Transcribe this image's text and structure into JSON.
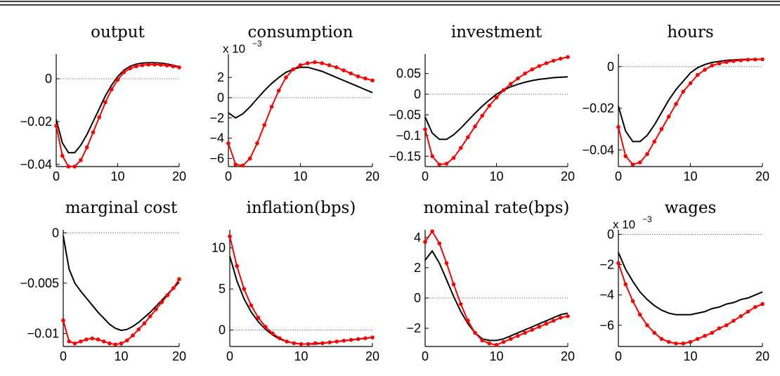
{
  "colors": {
    "model_a": "#000000",
    "model_b": "#ff0000",
    "zero_line": "#555555"
  },
  "chart_data": [
    {
      "type": "line",
      "title": "output",
      "xticks": [
        "0",
        "10",
        "20"
      ],
      "yticks": [
        "0",
        "−0.02",
        "−0.04"
      ],
      "xlim": [
        0,
        20
      ],
      "ylim": [
        -0.041,
        0.0115
      ],
      "yticks_values": [
        0,
        -0.02,
        -0.04
      ],
      "multiplier": "",
      "series": [
        {
          "style": "solid-black",
          "x": [
            0,
            1,
            2,
            3,
            4,
            5,
            6,
            7,
            8,
            9,
            10,
            11,
            12,
            13,
            14,
            15,
            16,
            17,
            18,
            19,
            20
          ],
          "y": [
            -0.019,
            -0.03,
            -0.0345,
            -0.0345,
            -0.031,
            -0.026,
            -0.02,
            -0.014,
            -0.008,
            -0.003,
            0.001,
            0.004,
            0.0058,
            0.0068,
            0.0073,
            0.0075,
            0.0075,
            0.0073,
            0.0069,
            0.0063,
            0.0056
          ]
        },
        {
          "style": "red-dots",
          "x": [
            0,
            1,
            2,
            3,
            4,
            5,
            6,
            7,
            8,
            9,
            10,
            11,
            12,
            13,
            14,
            15,
            16,
            17,
            18,
            19,
            20
          ],
          "y": [
            -0.022,
            -0.036,
            -0.041,
            -0.041,
            -0.038,
            -0.032,
            -0.025,
            -0.018,
            -0.011,
            -0.005,
            -0.0005,
            0.003,
            0.0048,
            0.0058,
            0.0063,
            0.0066,
            0.0066,
            0.0065,
            0.0062,
            0.0058,
            0.0053
          ]
        }
      ]
    },
    {
      "type": "line",
      "title": "consumption",
      "xticks": [
        "0",
        "10",
        "20"
      ],
      "yticks": [
        "2",
        "0",
        "−2",
        "−4",
        "−6"
      ],
      "xlim": [
        0,
        20
      ],
      "ylim": [
        -6.8,
        4.3
      ],
      "yticks_values": [
        2,
        0,
        -2,
        -4,
        -6
      ],
      "multiplier": "x 10",
      "multiplier_exponent": "−3",
      "series": [
        {
          "style": "solid-black",
          "x": [
            0,
            1,
            2,
            3,
            4,
            5,
            6,
            7,
            8,
            9,
            10,
            11,
            12,
            13,
            14,
            15,
            16,
            17,
            18,
            19,
            20
          ],
          "y": [
            -1.5,
            -2.0,
            -1.6,
            -0.9,
            -0.1,
            0.7,
            1.4,
            2.0,
            2.5,
            2.8,
            3.0,
            3.0,
            2.8,
            2.6,
            2.3,
            2.0,
            1.7,
            1.4,
            1.1,
            0.8,
            0.5
          ]
        },
        {
          "style": "red-dots",
          "x": [
            0,
            1,
            2,
            3,
            4,
            5,
            6,
            7,
            8,
            9,
            10,
            11,
            12,
            13,
            14,
            15,
            16,
            17,
            18,
            19,
            20
          ],
          "y": [
            -4.5,
            -6.6,
            -6.7,
            -6.0,
            -4.5,
            -2.7,
            -0.9,
            0.7,
            2.0,
            2.8,
            3.2,
            3.4,
            3.5,
            3.4,
            3.2,
            3.0,
            2.7,
            2.4,
            2.1,
            1.9,
            1.7
          ]
        }
      ]
    },
    {
      "type": "line",
      "title": "investment",
      "xticks": [
        "0",
        "10",
        "20"
      ],
      "yticks": [
        "0.05",
        "0",
        "−0.05",
        "−0.1",
        "−0.15"
      ],
      "xlim": [
        0,
        20
      ],
      "ylim": [
        -0.175,
        0.097
      ],
      "yticks_values": [
        0.05,
        0,
        -0.05,
        -0.1,
        -0.15
      ],
      "multiplier": "",
      "series": [
        {
          "style": "solid-black",
          "x": [
            0,
            1,
            2,
            3,
            4,
            5,
            6,
            7,
            8,
            9,
            10,
            11,
            12,
            13,
            14,
            15,
            16,
            17,
            18,
            19,
            20
          ],
          "y": [
            -0.055,
            -0.094,
            -0.109,
            -0.109,
            -0.098,
            -0.082,
            -0.064,
            -0.046,
            -0.029,
            -0.014,
            0.0,
            0.01,
            0.018,
            0.024,
            0.029,
            0.033,
            0.036,
            0.038,
            0.04,
            0.041,
            0.042
          ]
        },
        {
          "style": "red-dots",
          "x": [
            0,
            1,
            2,
            3,
            4,
            5,
            6,
            7,
            8,
            9,
            10,
            11,
            12,
            13,
            14,
            15,
            16,
            17,
            18,
            19,
            20
          ],
          "y": [
            -0.085,
            -0.15,
            -0.17,
            -0.168,
            -0.154,
            -0.13,
            -0.104,
            -0.078,
            -0.052,
            -0.028,
            -0.008,
            0.01,
            0.025,
            0.038,
            0.05,
            0.06,
            0.068,
            0.075,
            0.081,
            0.086,
            0.09
          ]
        }
      ]
    },
    {
      "type": "line",
      "title": "hours",
      "xticks": [
        "0",
        "10",
        "20"
      ],
      "yticks": [
        "0",
        "−0.02",
        "−0.04"
      ],
      "xlim": [
        0,
        20
      ],
      "ylim": [
        -0.048,
        0.006
      ],
      "yticks_values": [
        0,
        -0.02,
        -0.04
      ],
      "multiplier": "",
      "series": [
        {
          "style": "solid-black",
          "x": [
            0,
            1,
            2,
            3,
            4,
            5,
            6,
            7,
            8,
            9,
            10,
            11,
            12,
            13,
            14,
            15,
            16,
            17,
            18,
            19,
            20
          ],
          "y": [
            -0.019,
            -0.031,
            -0.036,
            -0.036,
            -0.033,
            -0.028,
            -0.022,
            -0.016,
            -0.011,
            -0.007,
            -0.003,
            -0.0005,
            0.001,
            0.002,
            0.0025,
            0.003,
            0.0032,
            0.0034,
            0.0035,
            0.0035,
            0.0035
          ]
        },
        {
          "style": "red-dots",
          "x": [
            0,
            1,
            2,
            3,
            4,
            5,
            6,
            7,
            8,
            9,
            10,
            11,
            12,
            13,
            14,
            15,
            16,
            17,
            18,
            19,
            20
          ],
          "y": [
            -0.029,
            -0.043,
            -0.047,
            -0.046,
            -0.042,
            -0.036,
            -0.03,
            -0.024,
            -0.018,
            -0.012,
            -0.008,
            -0.004,
            -0.0015,
            0.0005,
            0.0015,
            0.0022,
            0.0027,
            0.003,
            0.0033,
            0.0034,
            0.0035
          ]
        }
      ]
    },
    {
      "type": "line",
      "title": "marginal cost",
      "xticks": [
        "0",
        "10",
        "20"
      ],
      "yticks": [
        "0",
        "−0.005",
        "−0.01"
      ],
      "xlim": [
        0,
        20
      ],
      "ylim": [
        -0.0113,
        0.0003
      ],
      "yticks_values": [
        0,
        -0.005,
        -0.01
      ],
      "multiplier": "",
      "series": [
        {
          "style": "solid-black",
          "x": [
            0,
            1,
            2,
            3,
            4,
            5,
            6,
            7,
            8,
            9,
            10,
            11,
            12,
            13,
            14,
            15,
            16,
            17,
            18,
            19,
            20
          ],
          "y": [
            -0.0003,
            -0.0036,
            -0.005,
            -0.0058,
            -0.0065,
            -0.0072,
            -0.0079,
            -0.0085,
            -0.0091,
            -0.0095,
            -0.0097,
            -0.0096,
            -0.0093,
            -0.0089,
            -0.0084,
            -0.0079,
            -0.0073,
            -0.0067,
            -0.0061,
            -0.0055,
            -0.0049
          ]
        },
        {
          "style": "red-dots",
          "x": [
            0,
            1,
            2,
            3,
            4,
            5,
            6,
            7,
            8,
            9,
            10,
            11,
            12,
            13,
            14,
            15,
            16,
            17,
            18,
            19,
            20
          ],
          "y": [
            -0.0087,
            -0.0108,
            -0.011,
            -0.0108,
            -0.0106,
            -0.0105,
            -0.0106,
            -0.0108,
            -0.011,
            -0.0111,
            -0.011,
            -0.0107,
            -0.0102,
            -0.0096,
            -0.009,
            -0.0083,
            -0.0076,
            -0.0069,
            -0.0062,
            -0.0055,
            -0.0046
          ]
        }
      ]
    },
    {
      "type": "line",
      "title": "inflation(bps)",
      "xticks": [
        "0",
        "10",
        "20"
      ],
      "yticks": [
        "10",
        "5",
        "0"
      ],
      "xlim": [
        0,
        20
      ],
      "ylim": [
        -2.0,
        12.2
      ],
      "yticks_values": [
        10,
        5,
        0
      ],
      "multiplier": "",
      "series": [
        {
          "style": "solid-black",
          "x": [
            0,
            1,
            2,
            3,
            4,
            5,
            6,
            7,
            8,
            9,
            10,
            11,
            12,
            13,
            14,
            15,
            16,
            17,
            18,
            19,
            20
          ],
          "y": [
            9.0,
            6.0,
            3.8,
            2.2,
            1.0,
            0.1,
            -0.6,
            -1.1,
            -1.4,
            -1.6,
            -1.7,
            -1.7,
            -1.7,
            -1.6,
            -1.5,
            -1.4,
            -1.3,
            -1.2,
            -1.1,
            -1.0,
            -0.9
          ]
        },
        {
          "style": "red-dots",
          "x": [
            0,
            1,
            2,
            3,
            4,
            5,
            6,
            7,
            8,
            9,
            10,
            11,
            12,
            13,
            14,
            15,
            16,
            17,
            18,
            19,
            20
          ],
          "y": [
            11.4,
            7.8,
            5.0,
            3.0,
            1.5,
            0.4,
            -0.4,
            -1.0,
            -1.4,
            -1.6,
            -1.7,
            -1.7,
            -1.6,
            -1.6,
            -1.5,
            -1.4,
            -1.3,
            -1.2,
            -1.1,
            -1.0,
            -0.9
          ]
        }
      ]
    },
    {
      "type": "line",
      "title": "nominal rate(bps)",
      "xticks": [
        "0",
        "10",
        "20"
      ],
      "yticks": [
        "4",
        "2",
        "0",
        "−2"
      ],
      "xlim": [
        0,
        20
      ],
      "ylim": [
        -3.2,
        4.5
      ],
      "yticks_values": [
        4,
        2,
        0,
        -2
      ],
      "multiplier": "",
      "series": [
        {
          "style": "solid-black",
          "x": [
            0,
            1,
            2,
            3,
            4,
            5,
            6,
            7,
            8,
            9,
            10,
            11,
            12,
            13,
            14,
            15,
            16,
            17,
            18,
            19,
            20
          ],
          "y": [
            2.5,
            3.1,
            2.3,
            1.2,
            0.1,
            -0.9,
            -1.7,
            -2.3,
            -2.7,
            -2.8,
            -2.8,
            -2.7,
            -2.5,
            -2.3,
            -2.1,
            -1.9,
            -1.7,
            -1.5,
            -1.3,
            -1.1,
            -1.0
          ]
        },
        {
          "style": "red-dots",
          "x": [
            0,
            1,
            2,
            3,
            4,
            5,
            6,
            7,
            8,
            9,
            10,
            11,
            12,
            13,
            14,
            15,
            16,
            17,
            18,
            19,
            20
          ],
          "y": [
            3.7,
            4.4,
            3.6,
            2.3,
            0.9,
            -0.4,
            -1.5,
            -2.3,
            -2.8,
            -3.0,
            -3.1,
            -2.9,
            -2.7,
            -2.5,
            -2.3,
            -2.1,
            -1.9,
            -1.7,
            -1.5,
            -1.3,
            -1.2
          ]
        }
      ]
    },
    {
      "type": "line",
      "title": "wages",
      "xticks": [
        "0",
        "10",
        "20"
      ],
      "yticks": [
        "0",
        "−2",
        "−4",
        "−6"
      ],
      "xlim": [
        0,
        20
      ],
      "ylim": [
        -7.4,
        0.3
      ],
      "yticks_values": [
        0,
        -2,
        -4,
        -6
      ],
      "multiplier": "x 10",
      "multiplier_exponent": "−3",
      "series": [
        {
          "style": "solid-black",
          "x": [
            0,
            1,
            2,
            3,
            4,
            5,
            6,
            7,
            8,
            9,
            10,
            11,
            12,
            13,
            14,
            15,
            16,
            17,
            18,
            19,
            20
          ],
          "y": [
            -1.2,
            -2.3,
            -3.1,
            -3.8,
            -4.3,
            -4.7,
            -5.0,
            -5.2,
            -5.3,
            -5.3,
            -5.3,
            -5.2,
            -5.1,
            -4.9,
            -4.8,
            -4.6,
            -4.5,
            -4.3,
            -4.2,
            -4.0,
            -3.8
          ]
        },
        {
          "style": "red-dots",
          "x": [
            0,
            1,
            2,
            3,
            4,
            5,
            6,
            7,
            8,
            9,
            10,
            11,
            12,
            13,
            14,
            15,
            16,
            17,
            18,
            19,
            20
          ],
          "y": [
            -1.9,
            -3.3,
            -4.4,
            -5.3,
            -6.0,
            -6.5,
            -6.9,
            -7.1,
            -7.2,
            -7.2,
            -7.1,
            -6.9,
            -6.7,
            -6.5,
            -6.2,
            -6.0,
            -5.7,
            -5.4,
            -5.1,
            -4.8,
            -4.6
          ]
        }
      ]
    }
  ]
}
